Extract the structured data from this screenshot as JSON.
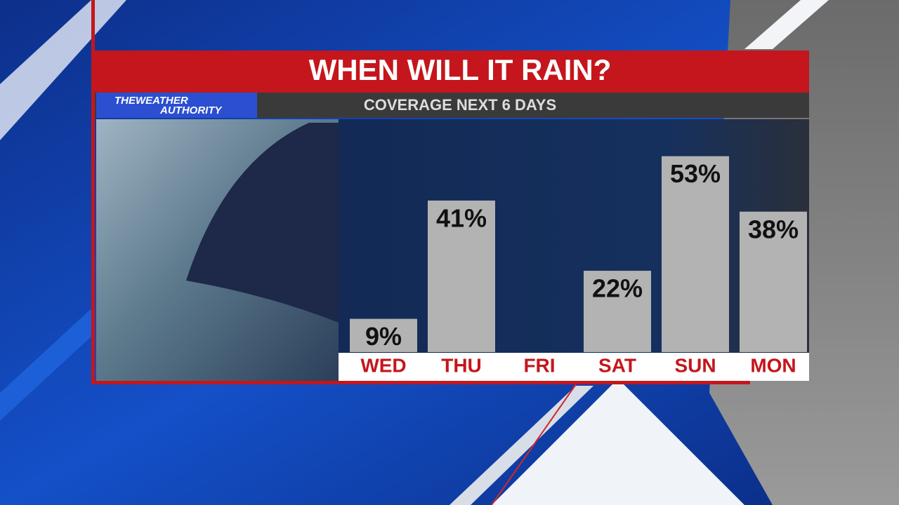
{
  "logo_lines": [
    "THEWEATHER",
    "AUTHORITY"
  ],
  "chart_data": {
    "type": "bar",
    "title": "WHEN WILL IT RAIN?",
    "subtitle": "COVERAGE NEXT 6 DAYS",
    "categories": [
      "WED",
      "THU",
      "FRI",
      "SAT",
      "SUN",
      "MON"
    ],
    "values": [
      9,
      41,
      null,
      22,
      53,
      38
    ],
    "value_labels": [
      "9%",
      "41%",
      null,
      "22%",
      "53%",
      "38%"
    ],
    "color": "#b3b3b3"
  }
}
